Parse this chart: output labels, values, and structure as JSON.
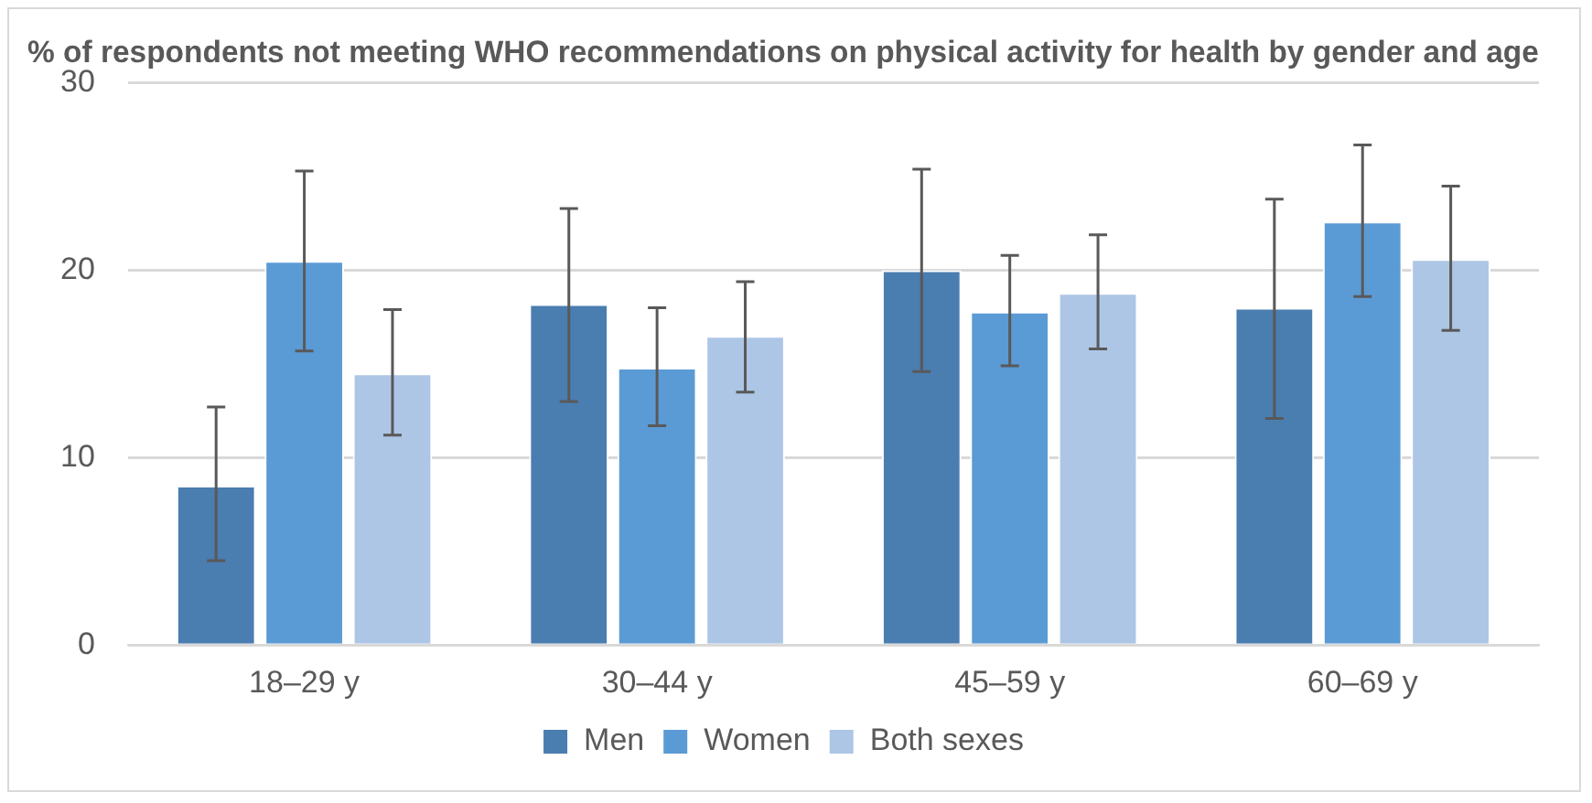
{
  "chart_data": {
    "type": "bar",
    "title": "% of respondents not meeting WHO recommendations on physical activity for health by gender and age",
    "categories": [
      "18–29 y",
      "30–44 y",
      "45–59 y",
      "60–69 y"
    ],
    "series": [
      {
        "name": "Men",
        "color": "#4a7db0",
        "values": [
          8.5,
          18.2,
          20.0,
          18.0
        ],
        "errors": [
          [
            4.5,
            12.7
          ],
          [
            13.0,
            23.3
          ],
          [
            14.6,
            25.4
          ],
          [
            12.1,
            23.8
          ]
        ]
      },
      {
        "name": "Women",
        "color": "#5b9bd5",
        "values": [
          20.5,
          14.8,
          17.8,
          22.6
        ],
        "errors": [
          [
            15.7,
            25.3
          ],
          [
            11.7,
            18.0
          ],
          [
            14.9,
            20.8
          ],
          [
            18.6,
            26.7
          ]
        ]
      },
      {
        "name": "Both sexes",
        "color": "#adc6e5",
        "values": [
          14.5,
          16.5,
          18.8,
          20.6
        ],
        "errors": [
          [
            11.2,
            17.9
          ],
          [
            13.5,
            19.4
          ],
          [
            15.8,
            21.9
          ],
          [
            16.8,
            24.5
          ]
        ]
      }
    ],
    "ylim": [
      0,
      30
    ],
    "yticks": [
      0,
      10,
      20,
      30
    ],
    "grid": "y",
    "legend": "bottom"
  }
}
